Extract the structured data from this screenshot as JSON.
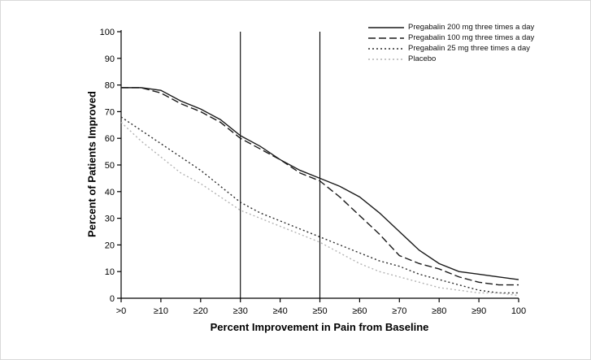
{
  "figure": {
    "background": "#ffffff",
    "axis_color": "#000000"
  },
  "chart_data": {
    "type": "line",
    "title": "",
    "xlabel": "Percent Improvement in Pain from Baseline",
    "ylabel": "Percent of Patients Improved",
    "xlim": [
      0,
      100
    ],
    "ylim": [
      0,
      100
    ],
    "grid": false,
    "legend_position": "top-right",
    "x_tick_values": [
      0,
      10,
      20,
      30,
      40,
      50,
      60,
      70,
      80,
      90,
      100
    ],
    "x_tick_labels": [
      ">0",
      "≥10",
      "≥20",
      "≥30",
      "≥40",
      "≥50",
      "≥60",
      "≥70",
      "≥80",
      "≥90",
      "100"
    ],
    "y_ticks": [
      0,
      10,
      20,
      30,
      40,
      50,
      60,
      70,
      80,
      90,
      100
    ],
    "reference_lines_x": [
      30,
      50
    ],
    "x": [
      0,
      5,
      10,
      15,
      20,
      25,
      30,
      35,
      40,
      45,
      50,
      55,
      60,
      65,
      70,
      75,
      80,
      85,
      90,
      95,
      100
    ],
    "series": [
      {
        "name": "Pregabalin 200 mg three times a day",
        "style": "solid",
        "color": "#1a1a1a",
        "values": [
          79,
          79,
          78,
          74,
          71,
          67,
          61,
          57,
          52,
          48,
          45,
          42,
          38,
          32,
          25,
          18,
          13,
          10,
          9,
          8,
          7
        ]
      },
      {
        "name": "Pregabalin 100 mg three times a day",
        "style": "dashed",
        "color": "#1a1a1a",
        "values": [
          79,
          79,
          77,
          73,
          70,
          66,
          60,
          56,
          52,
          47,
          44,
          38,
          31,
          24,
          16,
          13,
          11,
          8,
          6,
          5,
          5
        ]
      },
      {
        "name": "Pregabalin 25 mg three times a day",
        "style": "dotted",
        "color": "#2b2b2b",
        "values": [
          68,
          63,
          58,
          53,
          48,
          42,
          36,
          32,
          29,
          26,
          23,
          20,
          17,
          14,
          12,
          9,
          7,
          5,
          3,
          2,
          2
        ]
      },
      {
        "name": "Placebo",
        "style": "dotted",
        "color": "#b3b3b3",
        "values": [
          66,
          59,
          53,
          47,
          43,
          38,
          33,
          30,
          27,
          24,
          21,
          17,
          13,
          10,
          8,
          6,
          4,
          3,
          2,
          2,
          1
        ]
      }
    ]
  }
}
